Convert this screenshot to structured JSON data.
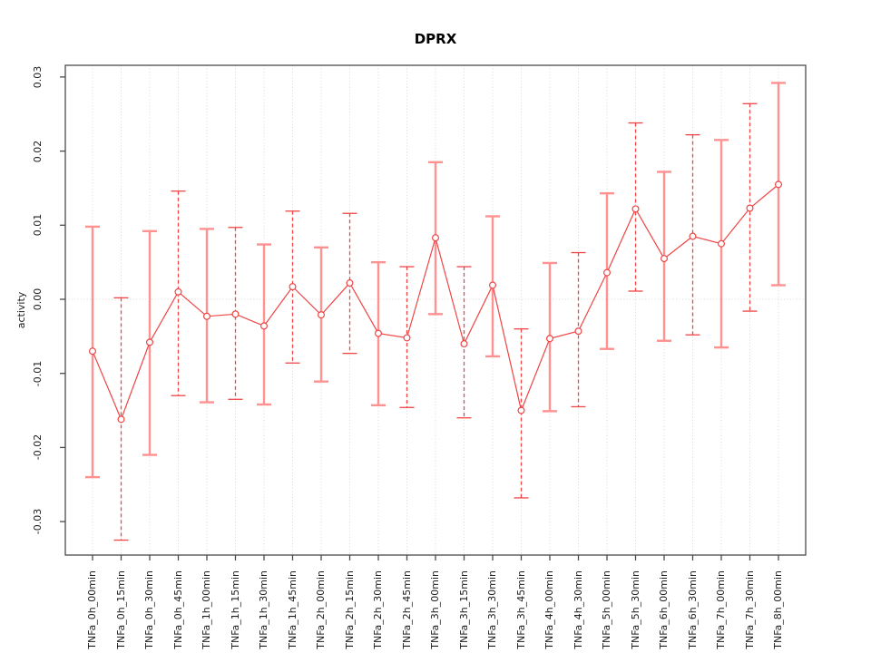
{
  "chart_data": {
    "type": "line",
    "title": "DPRX",
    "xlabel": "",
    "ylabel": "activity",
    "ylim": [
      -0.033,
      0.032
    ],
    "yticks": [
      -0.03,
      -0.02,
      -0.01,
      0,
      0.01,
      0.02,
      0.03
    ],
    "ytick_labels": [
      "-0.03",
      "-0.02",
      "-0.01",
      "0.00",
      "0.01",
      "0.02",
      "0.03"
    ],
    "grid": "vertical dotted gridline at every category plus dotted horizontal line at y=0",
    "legend": "none",
    "marker": "open-circle",
    "categories": [
      "TNFa_0h_00min",
      "TNFa_0h_15min",
      "TNFa_0h_30min",
      "TNFa_0h_45min",
      "TNFa_1h_00min",
      "TNFa_1h_15min",
      "TNFa_1h_30min",
      "TNFa_1h_45min",
      "TNFa_2h_00min",
      "TNFa_2h_15min",
      "TNFa_2h_30min",
      "TNFa_2h_45min",
      "TNFa_3h_00min",
      "TNFa_3h_15min",
      "TNFa_3h_30min",
      "TNFa_3h_45min",
      "TNFa_4h_00min",
      "TNFa_4h_30min",
      "TNFa_5h_00min",
      "TNFa_5h_30min",
      "TNFa_6h_00min",
      "TNFa_6h_30min",
      "TNFa_7h_00min",
      "TNFa_7h_30min",
      "TNFa_8h_00min"
    ],
    "series": [
      {
        "name": "activity",
        "values": [
          -0.007,
          -0.0162,
          -0.0058,
          0.001,
          -0.0023,
          -0.002,
          -0.0036,
          0.0017,
          -0.0021,
          0.0022,
          -0.0046,
          -0.0052,
          0.0083,
          -0.006,
          0.0019,
          -0.015,
          -0.0053,
          -0.0043,
          0.0036,
          0.0122,
          0.0055,
          0.0085,
          0.0075,
          0.0123,
          0.0155
        ],
        "ci_high": [
          0.0098,
          0.0002,
          0.0092,
          0.0146,
          0.0095,
          0.0097,
          0.0074,
          0.0119,
          0.007,
          0.0116,
          0.005,
          0.0044,
          0.0185,
          0.0044,
          0.0112,
          -0.004,
          0.0049,
          0.0063,
          0.0143,
          0.0238,
          0.0172,
          0.0222,
          0.0215,
          0.0264,
          0.0292
        ],
        "ci_low": [
          -0.024,
          -0.0325,
          -0.021,
          -0.013,
          -0.0139,
          -0.0135,
          -0.0142,
          -0.0086,
          -0.0111,
          -0.0073,
          -0.0143,
          -0.0146,
          -0.002,
          -0.016,
          -0.0077,
          -0.0268,
          -0.0151,
          -0.0145,
          -0.0067,
          0.0011,
          -0.0056,
          -0.0048,
          -0.0065,
          -0.0016,
          0.0019
        ]
      }
    ],
    "error_bar_style_pattern": [
      "salmon-solid",
      "red-dashed"
    ],
    "colors": {
      "line": "#ef4444",
      "point_stroke": "#ef4444",
      "bar_salmon": "#ff9191",
      "bar_red": "#f04545",
      "grid": "#d8d8d8",
      "axis": "#4b4b4b",
      "text": "#1c1c1c"
    }
  }
}
